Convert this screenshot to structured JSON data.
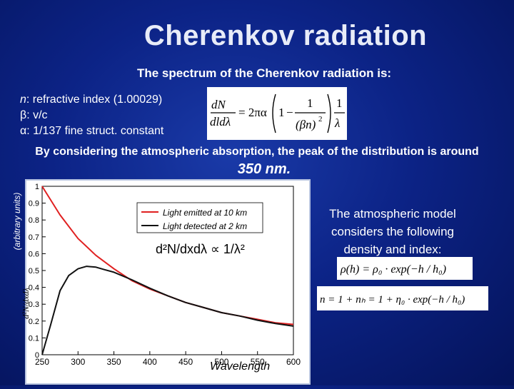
{
  "title": "Cherenkov radiation",
  "subtitle": "The spectrum of the Cherenkov radiation is:",
  "definitions": [
    {
      "symbol": "n",
      "text": ": refractive index (1.00029)"
    },
    {
      "symbol": "β",
      "text": ": v/c"
    },
    {
      "symbol": "α",
      "text": ": 1/137 fine struct. constant"
    }
  ],
  "absorption_text": "By considering the atmospheric absorption, the peak of the distribution is around",
  "peak_value": "350 nm.",
  "side_text": "The atmospheric model considers the following density and index:",
  "formulas": {
    "spectrum": {
      "lhs_num": "dN",
      "lhs_den": "dldλ",
      "eq": "= 2πα",
      "one": "1",
      "minus": "−",
      "frac_num": "1",
      "frac_den_base": "(βn)",
      "sq": "2",
      "last_num": "1",
      "last_den": "λ"
    },
    "density": "ρ(h) = ρ₀ · exp(−h / h₀)",
    "index": "n = 1 + nₕ = 1 + η₀ · exp(−h / h₀)"
  },
  "chart_data": {
    "type": "line",
    "xlabel": "Wavelength",
    "ylabel": "d²N/dxdλ",
    "ylabel_side": "(arbitrary units)",
    "xlim": [
      250,
      600
    ],
    "ylim": [
      0,
      1
    ],
    "xticks": [
      "250",
      "300",
      "350",
      "400",
      "450",
      "500",
      "550",
      "600"
    ],
    "yticks": [
      "0",
      "0.1",
      "0.2",
      "0.3",
      "0.4",
      "0.5",
      "0.6",
      "0.7",
      "0.8",
      "0.9",
      "1"
    ],
    "annotation": "d²N/dxdλ ∝ 1/λ²",
    "legend_position": "top-right",
    "series": [
      {
        "name": "Light emitted at 10 km",
        "color": "#e02020",
        "x": [
          250,
          275,
          300,
          325,
          350,
          375,
          400,
          425,
          450,
          475,
          500,
          525,
          550,
          575,
          600
        ],
        "y": [
          1.0,
          0.83,
          0.69,
          0.59,
          0.51,
          0.44,
          0.39,
          0.35,
          0.31,
          0.28,
          0.25,
          0.23,
          0.21,
          0.19,
          0.18
        ]
      },
      {
        "name": "Light detected at 2 km",
        "color": "#111111",
        "x": [
          250,
          262,
          275,
          287,
          300,
          312,
          325,
          337,
          350,
          375,
          400,
          425,
          450,
          475,
          500,
          525,
          550,
          575,
          600
        ],
        "y": [
          0.0,
          0.18,
          0.38,
          0.47,
          0.51,
          0.525,
          0.52,
          0.505,
          0.49,
          0.445,
          0.395,
          0.35,
          0.31,
          0.28,
          0.25,
          0.23,
          0.205,
          0.185,
          0.17
        ]
      }
    ]
  }
}
